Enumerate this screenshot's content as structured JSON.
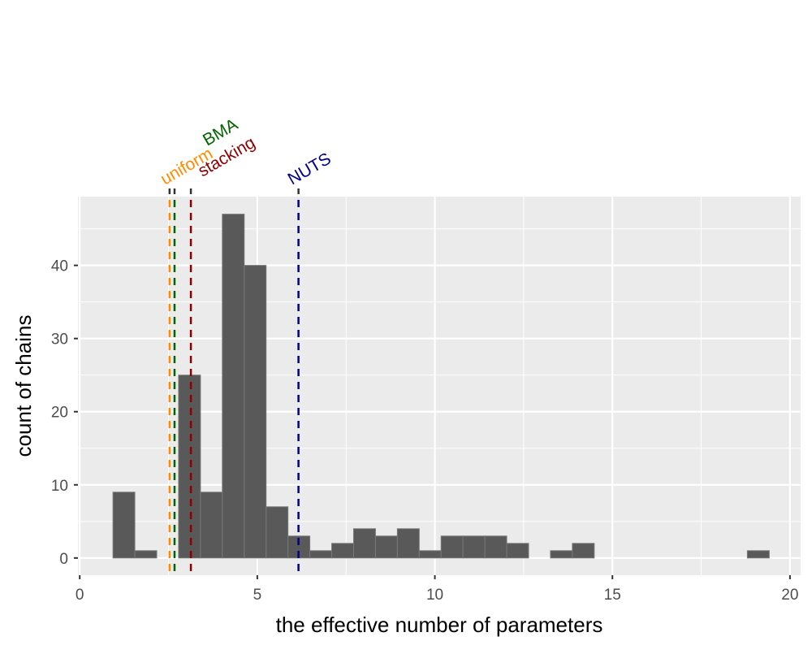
{
  "chart_data": {
    "type": "bar",
    "title": "",
    "xlabel": "the effective number of parameters",
    "ylabel": "count of chains",
    "xlim": [
      -0.05,
      20.3
    ],
    "ylim": [
      -2.35,
      49.4
    ],
    "xticks": [
      0,
      5,
      10,
      15,
      20
    ],
    "yticks": [
      0,
      10,
      20,
      30,
      40
    ],
    "grid": true,
    "bin_start": 0.936,
    "bin_width": 0.616,
    "counts": [
      9,
      1,
      0,
      25,
      9,
      47,
      40,
      7,
      3,
      1,
      2,
      4,
      3,
      4,
      1,
      3,
      3,
      3,
      2,
      0,
      1,
      2,
      0,
      0,
      0,
      0,
      0,
      0,
      0,
      1
    ],
    "bar_color": "#595959",
    "vlines": [
      {
        "label": "uniform",
        "x": 2.53,
        "color": "#FF8C00"
      },
      {
        "label": "BMA",
        "x": 2.67,
        "color": "#006400"
      },
      {
        "label": "stacking",
        "x": 3.13,
        "color": "#8B0000"
      },
      {
        "label": "NUTS",
        "x": 6.16,
        "color": "#00008B"
      }
    ]
  }
}
